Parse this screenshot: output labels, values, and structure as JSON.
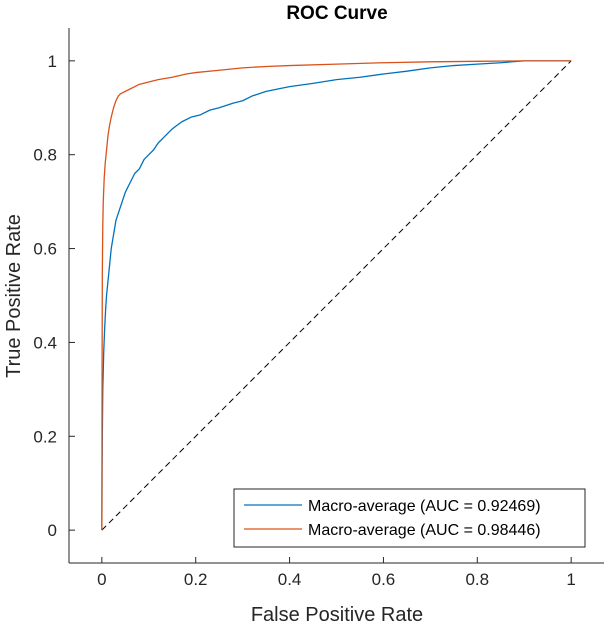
{
  "chart_data": {
    "type": "line",
    "title": "ROC Curve",
    "xlabel": "False Positive Rate",
    "ylabel": "True Positive Rate",
    "xlim": [
      -0.07,
      1.07
    ],
    "ylim": [
      -0.07,
      1.07
    ],
    "xticks": [
      0,
      0.2,
      0.4,
      0.6,
      0.8,
      1
    ],
    "yticks": [
      0,
      0.2,
      0.4,
      0.6,
      0.8,
      1
    ],
    "xtick_labels": [
      "0",
      "0.2",
      "0.4",
      "0.6",
      "0.8",
      "1"
    ],
    "ytick_labels": [
      "0",
      "0.2",
      "0.4",
      "0.6",
      "0.8",
      "1"
    ],
    "grid": false,
    "legend_position": "bottom-right",
    "series": [
      {
        "name": "Macro-average (AUC = 0.92469)",
        "color": "#0072BD",
        "x": [
          0,
          0.0005,
          0.001,
          0.002,
          0.004,
          0.006,
          0.008,
          0.01,
          0.015,
          0.02,
          0.025,
          0.03,
          0.04,
          0.05,
          0.06,
          0.07,
          0.08,
          0.09,
          0.1,
          0.11,
          0.12,
          0.13,
          0.14,
          0.15,
          0.17,
          0.19,
          0.21,
          0.23,
          0.25,
          0.28,
          0.3,
          0.32,
          0.35,
          0.4,
          0.45,
          0.5,
          0.55,
          0.6,
          0.65,
          0.7,
          0.75,
          0.8,
          0.85,
          0.9,
          0.92,
          0.95,
          1
        ],
        "y": [
          0,
          0.12,
          0.2,
          0.3,
          0.38,
          0.43,
          0.47,
          0.5,
          0.55,
          0.6,
          0.63,
          0.66,
          0.69,
          0.72,
          0.74,
          0.76,
          0.77,
          0.79,
          0.8,
          0.81,
          0.825,
          0.835,
          0.845,
          0.855,
          0.87,
          0.88,
          0.885,
          0.895,
          0.9,
          0.91,
          0.915,
          0.925,
          0.935,
          0.945,
          0.952,
          0.96,
          0.965,
          0.972,
          0.978,
          0.985,
          0.99,
          0.993,
          0.996,
          1,
          1,
          1,
          1
        ]
      },
      {
        "name": "Macro-average (AUC = 0.98446)",
        "color": "#D95319",
        "x": [
          0,
          0.0005,
          0.001,
          0.002,
          0.003,
          0.005,
          0.007,
          0.01,
          0.013,
          0.016,
          0.02,
          0.025,
          0.03,
          0.035,
          0.04,
          0.05,
          0.06,
          0.07,
          0.08,
          0.1,
          0.12,
          0.15,
          0.18,
          0.2,
          0.25,
          0.3,
          0.35,
          0.4,
          0.5,
          0.6,
          0.7,
          0.8,
          0.9,
          1
        ],
        "y": [
          0,
          0.35,
          0.55,
          0.65,
          0.7,
          0.75,
          0.78,
          0.81,
          0.84,
          0.86,
          0.88,
          0.9,
          0.915,
          0.925,
          0.93,
          0.935,
          0.94,
          0.945,
          0.95,
          0.955,
          0.96,
          0.965,
          0.972,
          0.975,
          0.98,
          0.985,
          0.988,
          0.99,
          0.993,
          0.996,
          0.998,
          0.999,
          1,
          1
        ]
      }
    ],
    "reference_line": {
      "x": [
        0,
        1
      ],
      "y": [
        0,
        1
      ],
      "color": "#000000",
      "style": "dashed"
    }
  }
}
